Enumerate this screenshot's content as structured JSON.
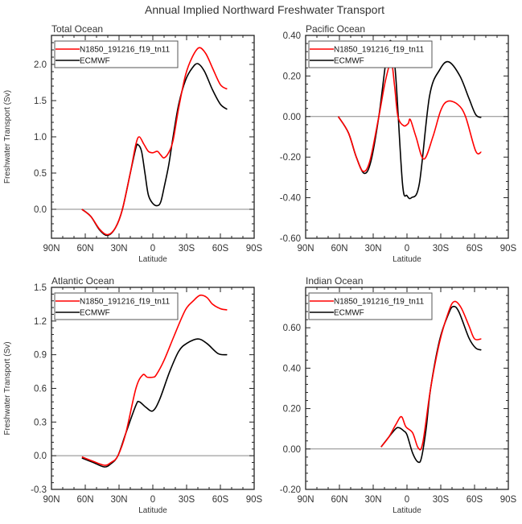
{
  "title": "Annual Implied Northward Freshwater Transport",
  "colors": {
    "model": "#ff0000",
    "obs": "#000000",
    "zero_line": "#888888",
    "axis": "#222222"
  },
  "chart_data": [
    {
      "type": "line",
      "title": "Total Ocean",
      "xlabel": "Latitude",
      "ylabel": "Freshwater Transport (Sv)",
      "xlim": [
        90,
        -90
      ],
      "xticks": [
        90,
        60,
        30,
        0,
        -30,
        -60,
        -90
      ],
      "xtick_labels": [
        "90N",
        "60N",
        "30N",
        "0",
        "30S",
        "60S",
        "90S"
      ],
      "ylim": [
        -0.4,
        2.4
      ],
      "yticks": [
        0.0,
        0.5,
        1.0,
        1.5,
        2.0
      ],
      "ytick_labels": [
        "0.0",
        "0.5",
        "1.0",
        "1.5",
        "2.0"
      ],
      "legend": {
        "placement": "top-left",
        "entries": [
          "N1850_191216_f19_tn11",
          "ECMWF"
        ]
      },
      "series": [
        {
          "name": "N1850_191216_f19_tn11",
          "color": "#ff0000",
          "x": [
            63,
            55,
            47,
            40,
            33,
            27,
            20,
            15,
            12,
            8,
            4,
            0,
            -4,
            -7,
            -10,
            -14,
            -18,
            -23,
            -29,
            -35,
            -41,
            -47,
            -53,
            -60,
            -66
          ],
          "y": [
            0,
            -0.1,
            -0.28,
            -0.35,
            -0.25,
            0,
            0.5,
            0.9,
            1.0,
            0.9,
            0.8,
            0.78,
            0.8,
            0.75,
            0.71,
            0.78,
            0.95,
            1.4,
            1.85,
            2.1,
            2.23,
            2.15,
            1.95,
            1.72,
            1.66
          ]
        },
        {
          "name": "ECMWF",
          "color": "#000000",
          "x": [
            63,
            55,
            47,
            40,
            33,
            27,
            20,
            15,
            13,
            10,
            7,
            4,
            0,
            -4,
            -7,
            -10,
            -14,
            -18,
            -23,
            -29,
            -35,
            -40,
            -46,
            -53,
            -60,
            -66
          ],
          "y": [
            0,
            -0.1,
            -0.29,
            -0.36,
            -0.25,
            0,
            0.5,
            0.85,
            0.89,
            0.8,
            0.5,
            0.2,
            0.08,
            0.05,
            0.1,
            0.3,
            0.6,
            1.0,
            1.45,
            1.78,
            1.95,
            2.01,
            1.9,
            1.65,
            1.45,
            1.38
          ]
        }
      ]
    },
    {
      "type": "line",
      "title": "Pacific Ocean",
      "xlabel": "Latitude",
      "ylabel": "",
      "xlim": [
        90,
        -90
      ],
      "xticks": [
        90,
        60,
        30,
        0,
        -30,
        -60,
        -90
      ],
      "xtick_labels": [
        "90N",
        "60N",
        "30N",
        "0",
        "30S",
        "60S",
        "90S"
      ],
      "ylim": [
        -0.6,
        0.4
      ],
      "yticks": [
        -0.6,
        -0.4,
        -0.2,
        0.0,
        0.2,
        0.4
      ],
      "ytick_labels": [
        "-0.60",
        "-0.40",
        "-0.20",
        "0.00",
        "0.20",
        "0.40"
      ],
      "legend": {
        "placement": "top-left",
        "entries": [
          "N1850_191216_f19_tn11",
          "ECMWF"
        ]
      },
      "series": [
        {
          "name": "N1850_191216_f19_tn11",
          "color": "#ff0000",
          "x": [
            61,
            52,
            45,
            39,
            33,
            25,
            19,
            14,
            11,
            8,
            3,
            -1,
            -3,
            -8,
            -15,
            -23,
            -30,
            -36,
            -45,
            -52,
            -61,
            -66
          ],
          "y": [
            0,
            -0.08,
            -0.2,
            -0.27,
            -0.22,
            0,
            0.18,
            0.265,
            0.15,
            0.0,
            -0.045,
            -0.035,
            -0.015,
            -0.1,
            -0.21,
            -0.1,
            0.03,
            0.075,
            0.06,
            0,
            -0.17,
            -0.175
          ]
        },
        {
          "name": "ECMWF",
          "color": "#000000",
          "x": [
            61,
            52,
            45,
            38,
            32,
            25,
            18,
            14,
            10,
            4,
            0,
            -4,
            -11,
            -20,
            -29,
            -37,
            -47,
            -55,
            -61,
            -66
          ],
          "y": [
            0,
            -0.08,
            -0.2,
            -0.28,
            -0.22,
            0,
            0.3,
            0.37,
            0.2,
            -0.33,
            -0.39,
            -0.4,
            -0.33,
            0.1,
            0.23,
            0.27,
            0.2,
            0.09,
            0.01,
            -0.005
          ]
        }
      ]
    },
    {
      "type": "line",
      "title": "Atlantic Ocean",
      "xlabel": "Latitude",
      "ylabel": "Freshwater Transport (Sv)",
      "xlim": [
        90,
        -90
      ],
      "xticks": [
        90,
        60,
        30,
        0,
        -30,
        -60,
        -90
      ],
      "xtick_labels": [
        "90N",
        "60N",
        "30N",
        "0",
        "30S",
        "60S",
        "90S"
      ],
      "ylim": [
        -0.3,
        1.5
      ],
      "yticks": [
        -0.3,
        0.0,
        0.3,
        0.6,
        0.9,
        1.2,
        1.5
      ],
      "ytick_labels": [
        "-0.3",
        "0.0",
        "0.3",
        "0.6",
        "0.9",
        "1.2",
        "1.5"
      ],
      "legend": {
        "placement": "top-left",
        "entries": [
          "N1850_191216_f19_tn11",
          "ECMWF"
        ]
      },
      "series": [
        {
          "name": "N1850_191216_f19_tn11",
          "color": "#ff0000",
          "x": [
            63,
            53,
            43,
            37,
            31,
            24,
            15,
            9,
            5,
            0,
            -3,
            -10,
            -19,
            -29,
            -36,
            -42,
            -48,
            -53,
            -60,
            -66
          ],
          "y": [
            -0.01,
            -0.05,
            -0.085,
            -0.06,
            0.0,
            0.2,
            0.6,
            0.72,
            0.7,
            0.7,
            0.72,
            0.85,
            1.07,
            1.3,
            1.38,
            1.43,
            1.41,
            1.35,
            1.31,
            1.3
          ]
        },
        {
          "name": "ECMWF",
          "color": "#000000",
          "x": [
            63,
            53,
            43,
            37,
            31,
            24,
            15,
            12,
            6,
            0,
            -6,
            -15,
            -23,
            -30,
            -40,
            -48,
            -58,
            -66
          ],
          "y": [
            -0.02,
            -0.06,
            -0.1,
            -0.07,
            0.0,
            0.2,
            0.45,
            0.48,
            0.43,
            0.4,
            0.5,
            0.75,
            0.93,
            1.0,
            1.04,
            1.0,
            0.91,
            0.9
          ]
        }
      ]
    },
    {
      "type": "line",
      "title": "Indian Ocean",
      "xlabel": "Latitude",
      "ylabel": "",
      "xlim": [
        90,
        -90
      ],
      "xticks": [
        90,
        60,
        30,
        0,
        -30,
        -60,
        -90
      ],
      "xtick_labels": [
        "90N",
        "60N",
        "30N",
        "0",
        "30S",
        "60S",
        "90S"
      ],
      "ylim": [
        -0.2,
        0.8
      ],
      "yticks": [
        -0.2,
        0.0,
        0.2,
        0.4,
        0.6
      ],
      "ytick_labels": [
        "-0.20",
        "0.00",
        "0.20",
        "0.40",
        "0.60"
      ],
      "legend": {
        "placement": "top-left",
        "entries": [
          "N1850_191216_f19_tn11",
          "ECMWF"
        ]
      },
      "series": [
        {
          "name": "N1850_191216_f19_tn11",
          "color": "#ff0000",
          "x": [
            23,
            16,
            10,
            5,
            1,
            -5,
            -10,
            -14,
            -21,
            -29,
            -37,
            -42,
            -48,
            -55,
            -60,
            -66
          ],
          "y": [
            0.01,
            0.06,
            0.12,
            0.16,
            0.11,
            0.08,
            0.005,
            0.03,
            0.3,
            0.53,
            0.68,
            0.73,
            0.7,
            0.61,
            0.545,
            0.545
          ]
        },
        {
          "name": "ECMWF",
          "color": "#000000",
          "x": [
            23,
            16,
            10,
            7,
            3,
            0,
            -5,
            -10,
            -13,
            -17,
            -21,
            -29,
            -37,
            -41,
            -46,
            -55,
            -61,
            -66
          ],
          "y": [
            0.01,
            0.06,
            0.1,
            0.105,
            0.09,
            0.07,
            -0.02,
            -0.065,
            -0.04,
            0.1,
            0.3,
            0.54,
            0.67,
            0.705,
            0.68,
            0.55,
            0.5,
            0.49
          ]
        }
      ]
    }
  ]
}
